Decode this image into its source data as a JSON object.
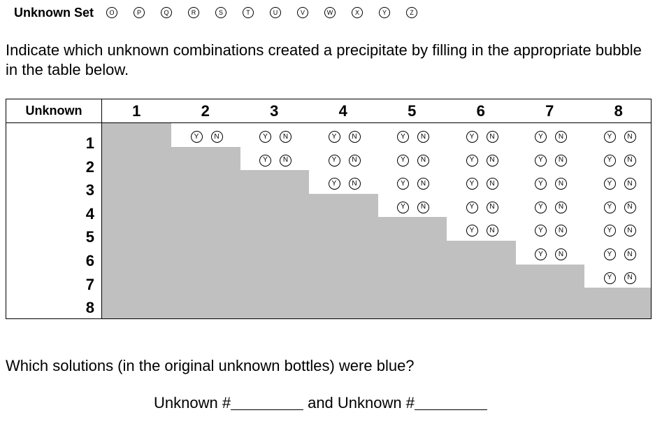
{
  "unknown_set": {
    "title": "Unknown Set",
    "options": [
      "O",
      "P",
      "Q",
      "R",
      "S",
      "T",
      "U",
      "V",
      "W",
      "X",
      "Y",
      "Z"
    ]
  },
  "instructions": "Indicate which unknown combinations created a precipitate by filling in the appropriate bubble in the table below.",
  "table": {
    "header_label": "Unknown",
    "columns": [
      "1",
      "2",
      "3",
      "4",
      "5",
      "6",
      "7",
      "8"
    ],
    "rows": [
      "1",
      "2",
      "3",
      "4",
      "5",
      "6",
      "7",
      "8"
    ],
    "yes_label": "Y",
    "no_label": "N",
    "shade_color": "#c0c0c0"
  },
  "question": "Which solutions (in the original unknown bottles) were blue?",
  "answer": {
    "prefix": "Unknown #",
    "middle": "and Unknown #"
  }
}
